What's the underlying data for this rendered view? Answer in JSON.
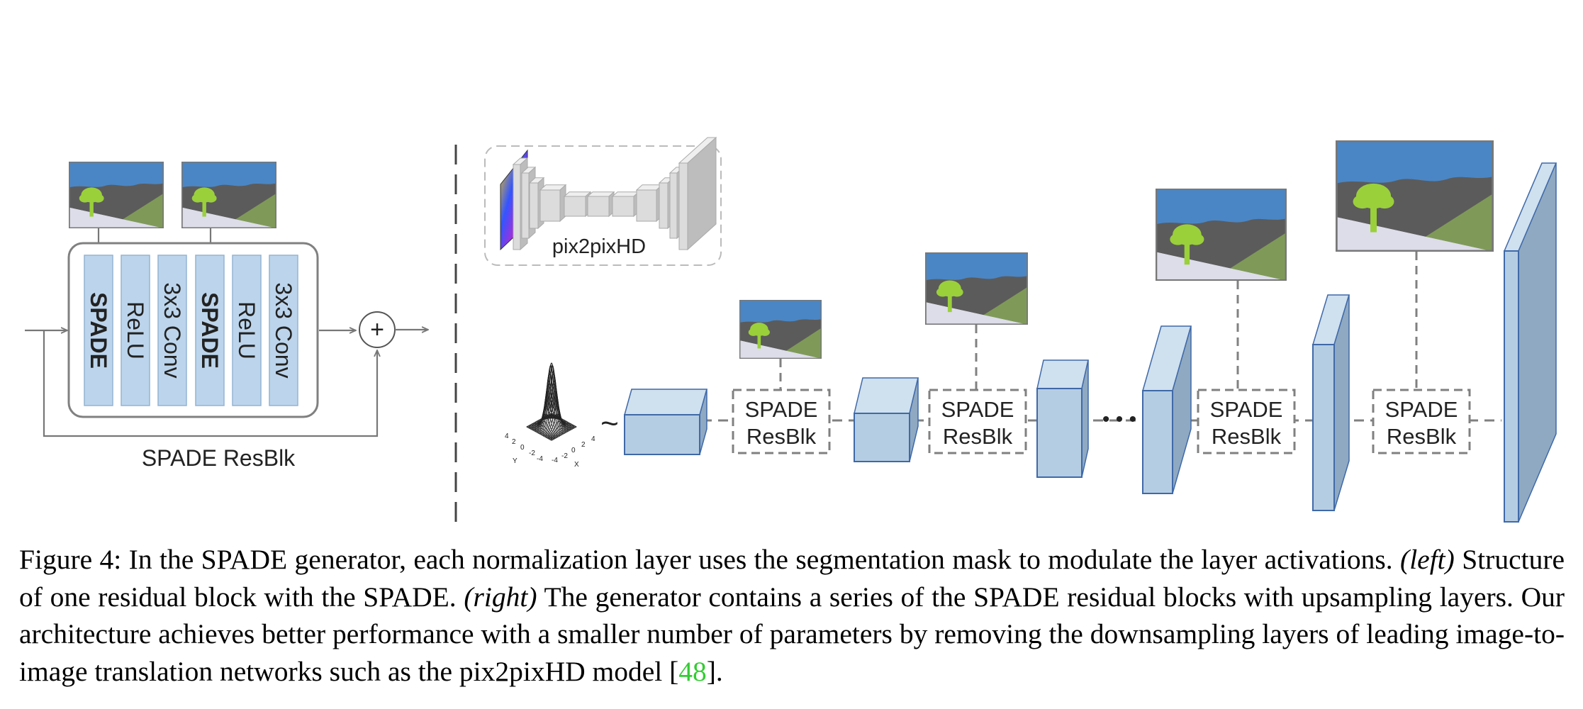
{
  "left_panel": {
    "layers": [
      {
        "label": "SPADE",
        "bold": true
      },
      {
        "label": "ReLU",
        "bold": false
      },
      {
        "label": "3x3 Conv",
        "bold": false
      },
      {
        "label": "SPADE",
        "bold": true
      },
      {
        "label": "ReLU",
        "bold": false
      },
      {
        "label": "3x3 Conv",
        "bold": false
      }
    ],
    "block_label": "SPADE ResBlk",
    "sum_symbol": "+"
  },
  "right_panel": {
    "pix2pixhd_label": "pix2pixHD",
    "noise_tilde": "~",
    "noise_axis_labels": [
      "4",
      "2",
      "0",
      "-2",
      "-4",
      "-4",
      "-2",
      "0",
      "2",
      "4",
      "Y",
      "X"
    ],
    "resblocks": [
      {
        "line1": "SPADE",
        "line2": "ResBlk"
      },
      {
        "line1": "SPADE",
        "line2": "ResBlk"
      },
      {
        "line1": "SPADE",
        "line2": "ResBlk"
      },
      {
        "line1": "SPADE",
        "line2": "ResBlk"
      }
    ],
    "ellipsis": "• • •"
  },
  "colors": {
    "layer_fill": "#bcd5ec",
    "layer_stroke": "#94b4d2",
    "box_front": "#b5cde3",
    "box_top": "#cfe0ef",
    "box_side": "#8fa9c2",
    "box_edge": "#3f69a8",
    "seg_sky": "#4a86c5",
    "seg_gray": "#5b5b5b",
    "seg_green": "#7f9a58",
    "seg_ground": "#dddde9",
    "seg_tree": "#9ad03a",
    "line_gray": "#777777",
    "citation": "#33cc33"
  },
  "caption": {
    "figure_label": "Figure 4:",
    "text1": "In the SPADE generator, each normalization layer uses the segmentation mask to modulate the layer activations.",
    "left_tag": "(left)",
    "text2": "Structure of one residual block with the SPADE.",
    "right_tag": "(right)",
    "text3": "The generator contains a series of the SPADE residual blocks with upsampling layers. Our architecture achieves better performance with a smaller number of parameters by removing the downsampling layers of leading image-to-image translation networks such as the pix2pixHD model [",
    "citation": "48",
    "text4": "]."
  }
}
